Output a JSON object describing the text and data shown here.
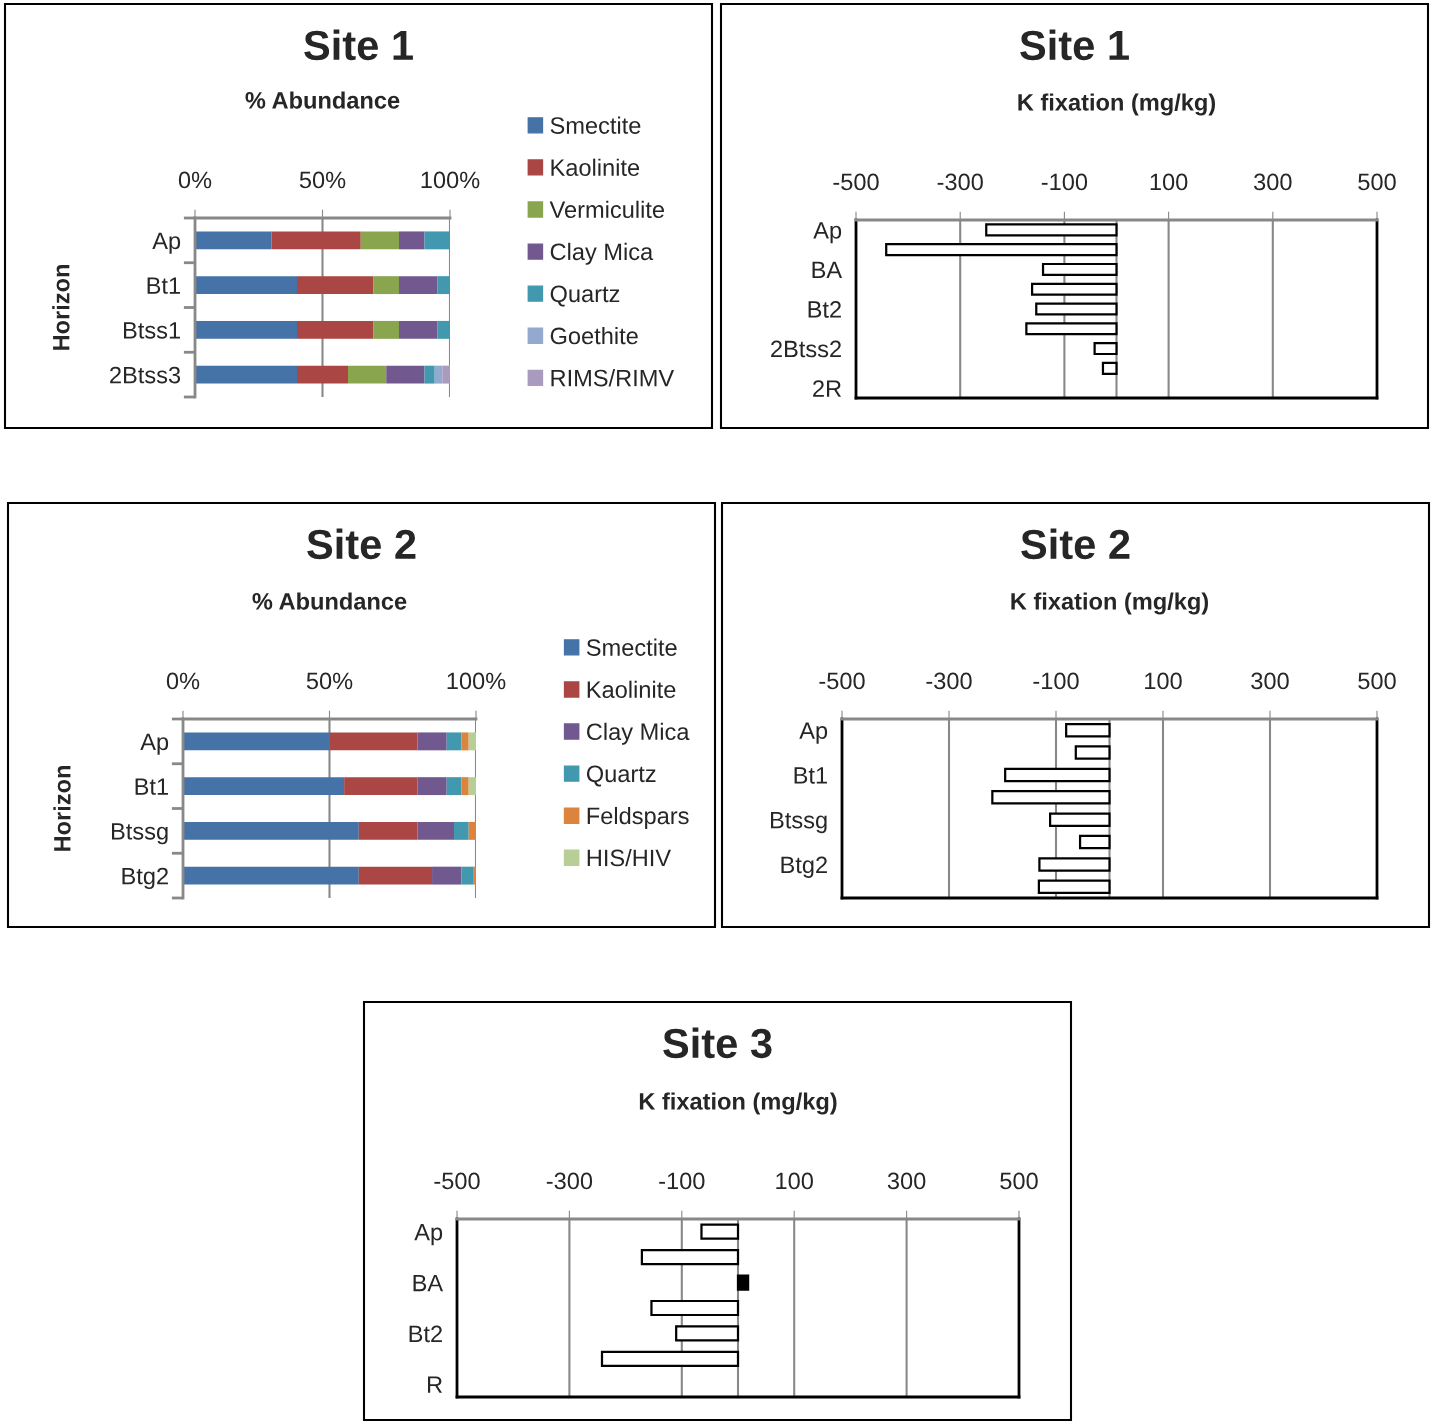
{
  "chart_data": [
    {
      "type": "bar",
      "orientation": "horizontal",
      "stacked": true,
      "title": "Site 1",
      "xlabel": "% Abundance",
      "ylabel": "Horizon",
      "categories": [
        "Ap",
        "Bt1",
        "Btss1",
        "2Btss3"
      ],
      "series": [
        {
          "name": "Smectite",
          "color": "#4572a7",
          "values": [
            30,
            40,
            40,
            40
          ]
        },
        {
          "name": "Kaolinite",
          "color": "#aa4643",
          "values": [
            35,
            30,
            30,
            20
          ]
        },
        {
          "name": "Vermiculite",
          "color": "#89a54e",
          "values": [
            15,
            10,
            10,
            15
          ]
        },
        {
          "name": "Clay Mica",
          "color": "#71588f",
          "values": [
            10,
            15,
            15,
            15
          ]
        },
        {
          "name": "Quartz",
          "color": "#4198af",
          "values": [
            10,
            5,
            5,
            4
          ]
        },
        {
          "name": "Goethite",
          "color": "#93a9cf",
          "values": [
            0,
            0,
            0,
            3
          ]
        },
        {
          "name": "RIMS/RIMV",
          "color": "#a99bbd",
          "values": [
            0,
            0,
            0,
            3
          ]
        }
      ],
      "xlim": [
        0,
        100
      ],
      "xticks": [
        {
          "value": 0,
          "label": "0%"
        },
        {
          "value": 50,
          "label": "50%"
        },
        {
          "value": 100,
          "label": "100%"
        }
      ],
      "grid": "x",
      "legend": "right"
    },
    {
      "type": "bar",
      "orientation": "horizontal",
      "title": "Site 1",
      "xlabel": "K fixation (mg/kg)",
      "categories": [
        "Ap",
        null,
        "BA",
        null,
        "Bt2",
        null,
        "2Btss2",
        null,
        "2R"
      ],
      "values": [
        -250,
        -442,
        -141,
        -162,
        -154,
        -173,
        -42,
        -26,
        null
      ],
      "colors": [
        "#ffffff",
        "#ffffff",
        "#ffffff",
        "#ffffff",
        "#ffffff",
        "#ffffff",
        "#ffffff",
        "#ffffff",
        "#ffffff"
      ],
      "xlim": [
        -500,
        500
      ],
      "xticks": [
        -500,
        -300,
        -100,
        100,
        300,
        500
      ],
      "grid": "x"
    },
    {
      "type": "bar",
      "orientation": "horizontal",
      "stacked": true,
      "title": "Site 2",
      "xlabel": "% Abundance",
      "ylabel": "Horizon",
      "categories": [
        "Ap",
        "Bt1",
        "Btssg",
        "Btg2"
      ],
      "series": [
        {
          "name": "Smectite",
          "color": "#4572a7",
          "values": [
            50,
            55,
            60,
            60
          ]
        },
        {
          "name": "Kaolinite",
          "color": "#aa4643",
          "values": [
            30,
            25,
            20,
            25
          ]
        },
        {
          "name": "Clay Mica",
          "color": "#71588f",
          "values": [
            10,
            10,
            12.5,
            10
          ]
        },
        {
          "name": "Quartz",
          "color": "#4198af",
          "values": [
            5,
            5,
            5,
            4
          ]
        },
        {
          "name": "Feldspars",
          "color": "#db843d",
          "values": [
            2.5,
            2.5,
            2.5,
            1
          ]
        },
        {
          "name": "HIS/HIV",
          "color": "#b9cd96",
          "values": [
            2.5,
            2.5,
            0,
            0
          ]
        }
      ],
      "xlim": [
        0,
        100
      ],
      "xticks": [
        {
          "value": 0,
          "label": "0%"
        },
        {
          "value": 50,
          "label": "50%"
        },
        {
          "value": 100,
          "label": "100%"
        }
      ],
      "grid": "x",
      "legend": "right"
    },
    {
      "type": "bar",
      "orientation": "horizontal",
      "title": "Site 2",
      "xlabel": "K fixation (mg/kg)",
      "categories": [
        "Ap",
        null,
        "Bt1",
        null,
        "Btssg",
        null,
        "Btg2",
        null
      ],
      "values": [
        -81,
        -63,
        -195,
        -219,
        -111,
        -55,
        -131,
        -132
      ],
      "colors": [
        "#ffffff",
        "#ffffff",
        "#ffffff",
        "#ffffff",
        "#ffffff",
        "#ffffff",
        "#ffffff",
        "#ffffff"
      ],
      "xlim": [
        -500,
        500
      ],
      "xticks": [
        -500,
        -300,
        -100,
        100,
        300,
        500
      ],
      "grid": "x"
    },
    {
      "type": "bar",
      "orientation": "horizontal",
      "title": "Site 3",
      "xlabel": "K fixation (mg/kg)",
      "categories": [
        "Ap",
        null,
        "BA",
        null,
        "Bt2",
        null,
        "R"
      ],
      "values": [
        -65,
        -171,
        18,
        -154,
        -110,
        -242,
        null
      ],
      "colors": [
        "#ffffff",
        "#ffffff",
        "#000000",
        "#ffffff",
        "#ffffff",
        "#ffffff",
        "#ffffff"
      ],
      "xlim": [
        -500,
        500
      ],
      "xticks": [
        -500,
        -300,
        -100,
        100,
        300,
        500
      ],
      "grid": "x"
    }
  ]
}
